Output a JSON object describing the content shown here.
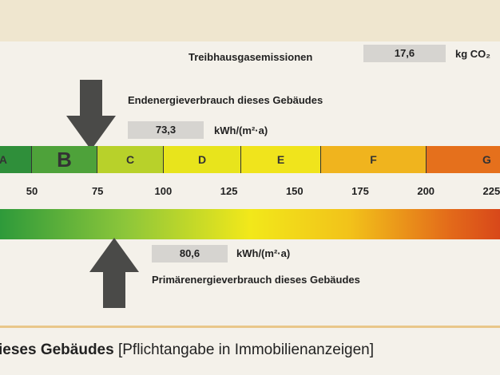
{
  "header": {
    "label": "Treibhausgasemissionen",
    "value": "17,6",
    "unit": "kg CO₂"
  },
  "end_energy": {
    "label": "Endenergieverbrauch dieses Gebäudes",
    "value": "73,3",
    "unit": "kWh/(m²·a)"
  },
  "classes": [
    "A",
    "B",
    "C",
    "D",
    "E",
    "F",
    "G"
  ],
  "scale": [
    "50",
    "75",
    "100",
    "125",
    "150",
    "175",
    "200",
    "225"
  ],
  "primary_energy": {
    "value": "80,6",
    "unit": "kWh/(m²·a)",
    "label": "Primärenergieverbrauch dieses Gebäudes"
  },
  "footer": {
    "bold": "ieses Gebäudes",
    "text": "[Pflichtangabe in Immobilienanzeigen]"
  }
}
